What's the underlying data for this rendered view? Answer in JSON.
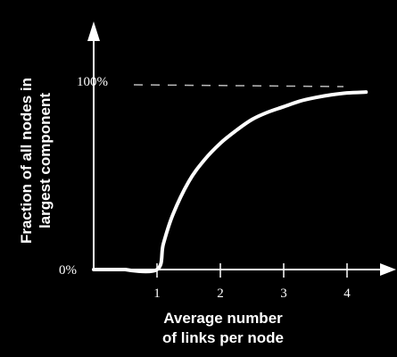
{
  "chart_data": {
    "type": "line",
    "title": "",
    "xlabel_lines": [
      "Average number",
      "of links per node"
    ],
    "ylabel_lines": [
      "Fraction of all nodes in",
      "largest component"
    ],
    "xticks": [
      "1",
      "2",
      "3",
      "4"
    ],
    "yticks": [
      "0%",
      "100%"
    ],
    "xlim": [
      0,
      4.8
    ],
    "ylim": [
      0,
      100
    ],
    "reference_line": {
      "y": 100,
      "style": "dashed"
    },
    "grid": false,
    "legend": "none",
    "series": [
      {
        "x": [
          0,
          0.5,
          1.0,
          1.1,
          1.25,
          1.5,
          1.75,
          2.0,
          2.25,
          2.5,
          2.75,
          3.0,
          3.25,
          3.5,
          3.75,
          4.0,
          4.3
        ],
        "y": [
          0,
          0,
          0,
          14,
          30,
          48,
          60,
          69,
          76,
          82,
          86,
          89,
          92,
          94,
          95.5,
          96.5,
          97
        ]
      }
    ],
    "colors": {
      "background": "#000000",
      "line": "#ffffff",
      "reference": "#bbbbbb"
    }
  }
}
